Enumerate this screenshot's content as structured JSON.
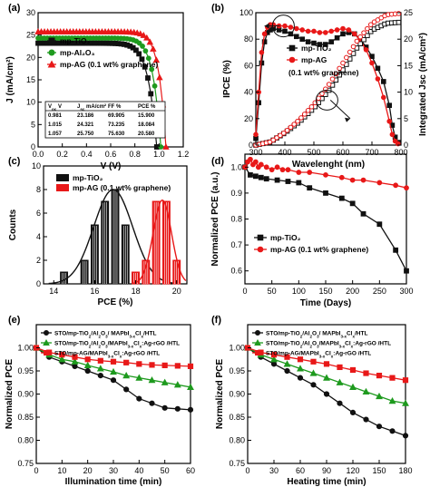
{
  "colors": {
    "black": "#111111",
    "green": "#1e9a1e",
    "red": "#e81818",
    "axis": "#000000"
  },
  "chart_data": [
    {
      "panel": "(a)",
      "type": "line",
      "xlabel": "V (V)",
      "ylabel": "J (mA/cm²)",
      "xlim": [
        0,
        1.2
      ],
      "ylim": [
        0,
        30
      ],
      "xticks": [
        0,
        0.2,
        0.4,
        0.6,
        0.8,
        1.0,
        1.2
      ],
      "yticks": [
        0,
        5,
        10,
        15,
        20,
        25,
        30
      ],
      "xtick_labels": [
        "0.0",
        "0.2",
        "0.4",
        "0.6",
        "0.8",
        "1.0",
        "1.2"
      ],
      "ytick_labels": [
        "0",
        "5",
        "10",
        "15",
        "20",
        "25",
        "30"
      ],
      "legend": [
        "mp-TiO₂",
        "mp-Al₂O₃",
        "mp-AG (0.1 wt% graphene)"
      ],
      "series": [
        {
          "name": "mp-TiO₂",
          "color": "black",
          "marker": "square",
          "voc": 0.981,
          "jsc": 23.186,
          "ff": 69.905,
          "pce": 15.9
        },
        {
          "name": "mp-Al₂O₃",
          "color": "green",
          "marker": "circle",
          "voc": 1.015,
          "jsc": 24.321,
          "ff": 73.235,
          "pce": 18.084
        },
        {
          "name": "mp-AG (0.1 wt% graphene)",
          "color": "red",
          "marker": "triangle",
          "voc": 1.057,
          "jsc": 25.75,
          "ff": 75.63,
          "pce": 20.58
        }
      ],
      "table": {
        "headers": [
          "V",
          "J",
          "FF %",
          "PCE %"
        ],
        "header_subs": [
          "oc",
          "sc"
        ],
        "header_suffix": [
          " V",
          " mA/cm²"
        ],
        "rows": [
          [
            "0.981",
            "23.186",
            "69.905",
            "15.900"
          ],
          [
            "1.015",
            "24.321",
            "73.235",
            "18.084"
          ],
          [
            "1.057",
            "25.750",
            "75.630",
            "20.580"
          ]
        ]
      }
    },
    {
      "panel": "(b)",
      "type": "line",
      "xlabel": "Wavelenght (nm)",
      "ylabel": "IPCE (%)",
      "y2label": "Integrated Jsc (mA/cm²)",
      "xlim": [
        300,
        800
      ],
      "ylim": [
        0,
        100
      ],
      "y2lim": [
        0,
        25
      ],
      "xticks": [
        300,
        400,
        500,
        600,
        700,
        800
      ],
      "yticks": [
        0,
        20,
        40,
        60,
        80,
        100
      ],
      "y2ticks": [
        0,
        5,
        10,
        15,
        20,
        25
      ],
      "legend": [
        "mp-TiO₂",
        "mp-AG",
        "(0.1 wt% graphene)"
      ],
      "series": [
        {
          "name": "mp-TiO₂",
          "color": "black",
          "kind": "IPCE",
          "x": [
            300,
            310,
            320,
            330,
            340,
            350,
            360,
            380,
            400,
            420,
            440,
            460,
            480,
            500,
            520,
            540,
            560,
            580,
            600,
            620,
            640,
            660,
            680,
            700,
            720,
            740,
            760,
            770,
            780,
            790
          ],
          "y": [
            5,
            32,
            62,
            78,
            85,
            87,
            88,
            87,
            86,
            84,
            82,
            80,
            78,
            77,
            76,
            76,
            78,
            81,
            84,
            85,
            84,
            80,
            74,
            67,
            58,
            48,
            30,
            15,
            6,
            2
          ]
        },
        {
          "name": "mp-AG",
          "color": "red",
          "kind": "IPCE",
          "x": [
            300,
            310,
            320,
            330,
            340,
            350,
            360,
            380,
            400,
            420,
            440,
            460,
            480,
            500,
            520,
            540,
            560,
            580,
            600,
            620,
            640,
            660,
            680,
            700,
            720,
            740,
            760,
            770,
            780,
            790
          ],
          "y": [
            8,
            40,
            70,
            84,
            89,
            91,
            91,
            90,
            90,
            89,
            88,
            87,
            86,
            86,
            85,
            85,
            86,
            87,
            88,
            87,
            84,
            79,
            72,
            62,
            50,
            36,
            18,
            8,
            3,
            1
          ]
        },
        {
          "name": "mp-TiO₂",
          "color": "black",
          "kind": "Integrated Jsc",
          "x": [
            300,
            350,
            400,
            450,
            500,
            550,
            600,
            650,
            700,
            750,
            800
          ],
          "y": [
            0,
            0.6,
            2.3,
            4.4,
            7.0,
            10.2,
            14.2,
            18.5,
            21.7,
            23.0,
            23.2
          ]
        },
        {
          "name": "mp-AG",
          "color": "red",
          "kind": "Integrated Jsc",
          "x": [
            300,
            350,
            400,
            450,
            500,
            550,
            600,
            650,
            700,
            750,
            800
          ],
          "y": [
            0,
            0.6,
            2.4,
            4.8,
            7.7,
            11.3,
            15.5,
            19.8,
            23.0,
            24.6,
            24.9
          ]
        }
      ]
    },
    {
      "panel": "(c)",
      "type": "bar",
      "xlabel": "PCE (%)",
      "ylabel": "Counts",
      "xlim": [
        13.5,
        20.5
      ],
      "ylim": [
        0,
        10
      ],
      "xticks": [
        14,
        16,
        18,
        20
      ],
      "yticks": [
        0,
        2,
        4,
        6,
        8,
        10
      ],
      "legend": [
        "mp-TiO₂",
        "mp-AG (0.1 wt% graphene)"
      ],
      "series": [
        {
          "name": "mp-TiO₂",
          "color": "black",
          "x": [
            14.5,
            15.5,
            16.0,
            16.5,
            17.0,
            17.5,
            18.0
          ],
          "y": [
            1,
            2,
            5,
            7,
            8,
            5,
            1
          ]
        },
        {
          "name": "mp-AG (0.1 wt% graphene)",
          "color": "red",
          "x": [
            18.0,
            18.5,
            19.0,
            19.5,
            20.0
          ],
          "y": [
            1,
            2,
            7,
            7,
            2
          ]
        }
      ]
    },
    {
      "panel": "(d)",
      "type": "line",
      "xlabel": "Time (Days)",
      "ylabel": "Normalized PCE (a.u.)",
      "xlim": [
        0,
        300
      ],
      "ylim": [
        0.55,
        1.05
      ],
      "xticks": [
        0,
        50,
        100,
        150,
        200,
        250,
        300
      ],
      "yticks": [
        0.6,
        0.7,
        0.8,
        0.9,
        1.0
      ],
      "xtick_labels": [
        "0",
        "50",
        "100",
        "150",
        "200",
        "250",
        "300"
      ],
      "ytick_labels": [
        "0.6",
        "0.7",
        "0.8",
        "0.9",
        "1.0"
      ],
      "legend": [
        "mp-TiO₂",
        "mp-AG (0.1 wt% graphene)"
      ],
      "series": [
        {
          "name": "mp-TiO₂",
          "color": "black",
          "marker": "square",
          "x": [
            0,
            10,
            20,
            30,
            40,
            60,
            80,
            100,
            120,
            150,
            180,
            200,
            220,
            250,
            280,
            300
          ],
          "y": [
            1.0,
            0.97,
            0.965,
            0.96,
            0.955,
            0.95,
            0.945,
            0.94,
            0.92,
            0.9,
            0.88,
            0.86,
            0.82,
            0.78,
            0.68,
            0.6
          ]
        },
        {
          "name": "mp-AG (0.1 wt% graphene)",
          "color": "red",
          "marker": "circle",
          "x": [
            0,
            5,
            10,
            15,
            20,
            25,
            30,
            40,
            50,
            60,
            70,
            80,
            100,
            120,
            150,
            180,
            200,
            220,
            250,
            280,
            300
          ],
          "y": [
            1.0,
            1.02,
            1.03,
            1.01,
            1.02,
            1.0,
            1.01,
            1.0,
            0.99,
            1.0,
            0.99,
            0.99,
            0.98,
            0.98,
            0.97,
            0.96,
            0.95,
            0.95,
            0.94,
            0.93,
            0.92
          ]
        }
      ]
    },
    {
      "panel": "(e)",
      "type": "line",
      "xlabel": "Illumination time (min)",
      "ylabel": "Normalized PCE",
      "xlim": [
        0,
        60
      ],
      "ylim": [
        0.75,
        1.05
      ],
      "xticks": [
        0,
        10,
        20,
        30,
        40,
        50,
        60
      ],
      "yticks": [
        0.75,
        0.8,
        0.85,
        0.9,
        0.95,
        1.0
      ],
      "ytick_labels": [
        "0.75",
        "0.80",
        "0.85",
        "0.90",
        "0.95",
        "1.00"
      ],
      "legend": [
        {
          "pre": "STO/mp-TiO",
          "s1": "2",
          "mid": "/Al",
          "s2": "2",
          "mid2": "O",
          "s3": "3",
          "post": "/ MAPbI",
          "s4": "3-x",
          "post2": "Cl",
          "s5": "x",
          "post3": "/HTL"
        },
        {
          "pre": "STO/mp-TiO",
          "s1": "2",
          "mid": "/Al",
          "s2": "2",
          "mid2": "O",
          "s3": "3",
          "post": "/MAPbI",
          "s4": "3-x",
          "post2": "Cl",
          "s5": "x",
          "post3": ":Ag-rGO /HTL"
        },
        {
          "pre": "STO/mp-AG/MAPbI",
          "s1": "3-x",
          "mid": "Cl",
          "s2": "x",
          "mid2": ":Ag-rGO /HTL",
          "s3": "",
          "post": "",
          "s4": "",
          "post2": "",
          "s5": "",
          "post3": ""
        }
      ],
      "series": [
        {
          "name": "STO/mp-TiO₂/Al₂O₃/MAPbI₃₋ₓClₓ/HTL",
          "color": "black",
          "marker": "circle",
          "x": [
            0,
            5,
            10,
            15,
            20,
            25,
            30,
            35,
            40,
            45,
            50,
            55,
            60
          ],
          "y": [
            1.0,
            0.98,
            0.97,
            0.96,
            0.95,
            0.94,
            0.93,
            0.91,
            0.89,
            0.88,
            0.87,
            0.868,
            0.866
          ]
        },
        {
          "name": "STO/mp-TiO₂/Al₂O₃/MAPbI₃₋ₓClₓ:Ag-rGO/HTL",
          "color": "green",
          "marker": "triangle",
          "x": [
            0,
            5,
            10,
            15,
            20,
            25,
            30,
            35,
            40,
            45,
            50,
            55,
            60
          ],
          "y": [
            1.0,
            0.985,
            0.975,
            0.97,
            0.962,
            0.955,
            0.948,
            0.94,
            0.935,
            0.93,
            0.925,
            0.92,
            0.915
          ]
        },
        {
          "name": "STO/mp-AG/MAPbI₃₋ₓClₓ:Ag-rGO/HTL",
          "color": "red",
          "marker": "square",
          "x": [
            0,
            5,
            10,
            15,
            20,
            25,
            30,
            35,
            40,
            45,
            50,
            55,
            60
          ],
          "y": [
            1.0,
            0.99,
            0.985,
            0.98,
            0.975,
            0.972,
            0.97,
            0.968,
            0.965,
            0.963,
            0.962,
            0.961,
            0.96
          ]
        }
      ]
    },
    {
      "panel": "(f)",
      "type": "line",
      "xlabel": "Heating time (min)",
      "ylabel": "Normalized PCE",
      "xlim": [
        0,
        180
      ],
      "ylim": [
        0.75,
        1.05
      ],
      "xticks": [
        0,
        30,
        60,
        90,
        120,
        150,
        180
      ],
      "yticks": [
        0.75,
        0.8,
        0.85,
        0.9,
        0.95,
        1.0
      ],
      "ytick_labels": [
        "0.75",
        "0.80",
        "0.85",
        "0.90",
        "0.95",
        "1.00"
      ],
      "legend": [
        {
          "pre": "STO/mp-TiO",
          "s1": "2",
          "mid": "/Al",
          "s2": "2",
          "mid2": "O",
          "s3": "3",
          "post": "/ MAPbI",
          "s4": "3-x",
          "post2": "Cl",
          "s5": "x",
          "post3": "/HTL"
        },
        {
          "pre": "STO/mp-TiO",
          "s1": "2",
          "mid": "/Al",
          "s2": "2",
          "mid2": "O",
          "s3": "3",
          "post": "/MAPbI",
          "s4": "3-x",
          "post2": "Cl",
          "s5": "x",
          "post3": ":Ag-rGO /HTL"
        },
        {
          "pre": "STO/mp-AG/MAPbI",
          "s1": "3-x",
          "mid": "Cl",
          "s2": "x",
          "mid2": ":Ag-rGO /HTL",
          "s3": "",
          "post": "",
          "s4": "",
          "post2": "",
          "s5": "",
          "post3": ""
        }
      ],
      "series": [
        {
          "name": "STO/mp-TiO₂/Al₂O₃/MAPbI₃₋ₓClₓ/HTL",
          "color": "black",
          "marker": "circle",
          "x": [
            0,
            15,
            30,
            45,
            60,
            75,
            90,
            105,
            120,
            135,
            150,
            165,
            180
          ],
          "y": [
            1.0,
            0.98,
            0.965,
            0.95,
            0.935,
            0.92,
            0.9,
            0.88,
            0.86,
            0.845,
            0.83,
            0.82,
            0.81
          ]
        },
        {
          "name": "STO/mp-TiO₂/Al₂O₃/MAPbI₃₋ₓClₓ:Ag-rGO/HTL",
          "color": "green",
          "marker": "triangle",
          "x": [
            0,
            15,
            30,
            45,
            60,
            75,
            90,
            105,
            120,
            135,
            150,
            165,
            180
          ],
          "y": [
            1.0,
            0.985,
            0.975,
            0.965,
            0.955,
            0.945,
            0.935,
            0.925,
            0.915,
            0.905,
            0.895,
            0.885,
            0.88
          ]
        },
        {
          "name": "STO/mp-AG/MAPbI₃₋ₓClₓ:Ag-rGO/HTL",
          "color": "red",
          "marker": "square",
          "x": [
            0,
            15,
            30,
            45,
            60,
            75,
            90,
            105,
            120,
            135,
            150,
            165,
            180
          ],
          "y": [
            1.0,
            0.99,
            0.985,
            0.98,
            0.975,
            0.97,
            0.965,
            0.958,
            0.952,
            0.945,
            0.94,
            0.935,
            0.93
          ]
        }
      ]
    }
  ]
}
